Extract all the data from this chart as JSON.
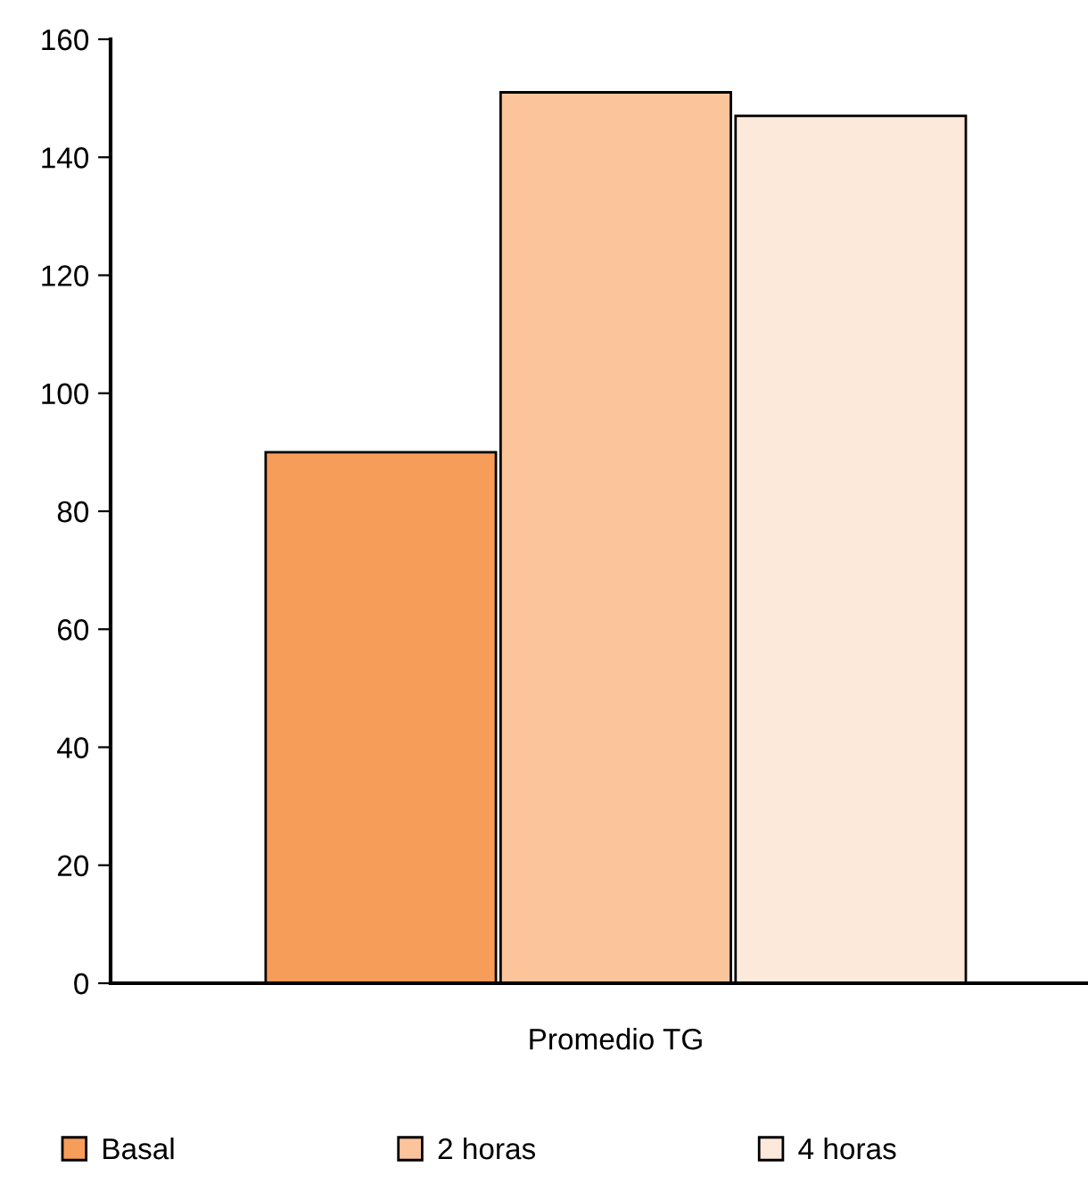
{
  "chart_data": {
    "type": "bar",
    "categories": [
      "Promedio TG"
    ],
    "series": [
      {
        "name": "Basal",
        "color": "#f79d5a",
        "values": [
          90
        ]
      },
      {
        "name": "2 horas",
        "color": "#fbc49b",
        "values": [
          151
        ]
      },
      {
        "name": "4 horas",
        "color": "#fde9da",
        "values": [
          147
        ]
      }
    ],
    "ylim": [
      0,
      160
    ],
    "yticks": [
      0,
      20,
      40,
      60,
      80,
      100,
      120,
      140,
      160
    ],
    "grid": false,
    "legend": "bottom"
  }
}
